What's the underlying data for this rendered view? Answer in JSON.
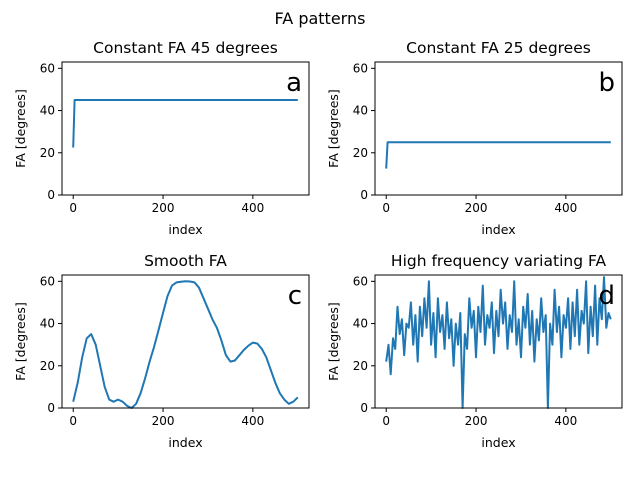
{
  "figure": {
    "suptitle": "FA patterns"
  },
  "chart_data": [
    {
      "type": "line",
      "title": "Constant FA 45 degrees",
      "xlabel": "index",
      "ylabel": "FA [degrees]",
      "panel_letter": "a",
      "xlim": [
        -25,
        525
      ],
      "ylim": [
        0,
        63
      ],
      "xticks": [
        0,
        200,
        400
      ],
      "yticks": [
        0,
        20,
        40,
        60
      ],
      "color": "#1f77b4",
      "x": [
        0,
        3,
        500
      ],
      "y": [
        22.5,
        45,
        45
      ]
    },
    {
      "type": "line",
      "title": "Constant FA 25 degrees",
      "xlabel": "index",
      "ylabel": "FA [degrees]",
      "panel_letter": "b",
      "xlim": [
        -25,
        525
      ],
      "ylim": [
        0,
        63
      ],
      "xticks": [
        0,
        200,
        400
      ],
      "yticks": [
        0,
        20,
        40,
        60
      ],
      "color": "#1f77b4",
      "x": [
        0,
        3,
        500
      ],
      "y": [
        12.5,
        25,
        25
      ]
    },
    {
      "type": "line",
      "title": "Smooth FA",
      "xlabel": "index",
      "ylabel": "FA [degrees]",
      "panel_letter": "c",
      "xlim": [
        -25,
        525
      ],
      "ylim": [
        0,
        63
      ],
      "xticks": [
        0,
        200,
        400
      ],
      "yticks": [
        0,
        20,
        40,
        60
      ],
      "color": "#1f77b4",
      "x": [
        0,
        10,
        20,
        30,
        40,
        50,
        60,
        70,
        80,
        90,
        100,
        110,
        120,
        130,
        140,
        150,
        160,
        170,
        180,
        190,
        200,
        210,
        220,
        230,
        240,
        250,
        260,
        270,
        280,
        290,
        300,
        310,
        320,
        330,
        340,
        350,
        360,
        370,
        380,
        390,
        400,
        410,
        420,
        430,
        440,
        450,
        460,
        470,
        480,
        490,
        500
      ],
      "y": [
        3,
        12,
        24,
        33,
        35,
        30,
        20,
        10,
        4,
        3,
        4,
        3,
        1,
        0,
        2,
        7,
        14,
        22,
        29,
        37,
        45,
        53,
        58,
        59.5,
        59.8,
        60,
        59.9,
        59.5,
        57,
        52,
        47,
        42,
        38,
        32,
        25,
        22,
        22.5,
        25,
        27.5,
        29.5,
        31,
        30.5,
        28,
        24,
        18,
        12,
        7,
        4,
        2,
        3,
        5
      ]
    },
    {
      "type": "line",
      "title": "High frequency variating FA",
      "xlabel": "index",
      "ylabel": "FA [degrees]",
      "panel_letter": "d",
      "xlim": [
        -25,
        525
      ],
      "ylim": [
        0,
        63
      ],
      "xticks": [
        0,
        200,
        400
      ],
      "yticks": [
        0,
        20,
        40,
        60
      ],
      "color": "#1f77b4",
      "x": [
        0,
        5,
        10,
        15,
        20,
        25,
        30,
        35,
        40,
        45,
        50,
        55,
        60,
        65,
        70,
        75,
        80,
        85,
        90,
        95,
        100,
        105,
        110,
        115,
        120,
        125,
        130,
        135,
        140,
        145,
        150,
        155,
        160,
        165,
        170,
        175,
        180,
        185,
        190,
        195,
        200,
        205,
        210,
        215,
        220,
        225,
        230,
        235,
        240,
        245,
        250,
        255,
        260,
        265,
        270,
        275,
        280,
        285,
        290,
        295,
        300,
        305,
        310,
        315,
        320,
        325,
        330,
        335,
        340,
        345,
        350,
        355,
        360,
        365,
        370,
        375,
        380,
        385,
        390,
        395,
        400,
        405,
        410,
        415,
        420,
        425,
        430,
        435,
        440,
        445,
        450,
        455,
        460,
        465,
        470,
        475,
        480,
        485,
        490,
        495,
        500
      ],
      "y": [
        22,
        30,
        16,
        33,
        28,
        48,
        35,
        42,
        25,
        40,
        38,
        50,
        30,
        44,
        22,
        48,
        34,
        52,
        38,
        60,
        30,
        45,
        24,
        52,
        36,
        44,
        28,
        50,
        33,
        42,
        20,
        40,
        30,
        45,
        0,
        35,
        28,
        52,
        38,
        46,
        24,
        48,
        36,
        58,
        30,
        44,
        38,
        50,
        26,
        46,
        34,
        56,
        40,
        50,
        28,
        44,
        36,
        60,
        30,
        42,
        24,
        48,
        38,
        54,
        30,
        46,
        22,
        42,
        32,
        52,
        36,
        44,
        0,
        40,
        30,
        56,
        36,
        48,
        24,
        44,
        38,
        52,
        28,
        50,
        34,
        56,
        30,
        46,
        40,
        60,
        26,
        48,
        34,
        58,
        30,
        52,
        42,
        62,
        38,
        45,
        42
      ]
    }
  ]
}
